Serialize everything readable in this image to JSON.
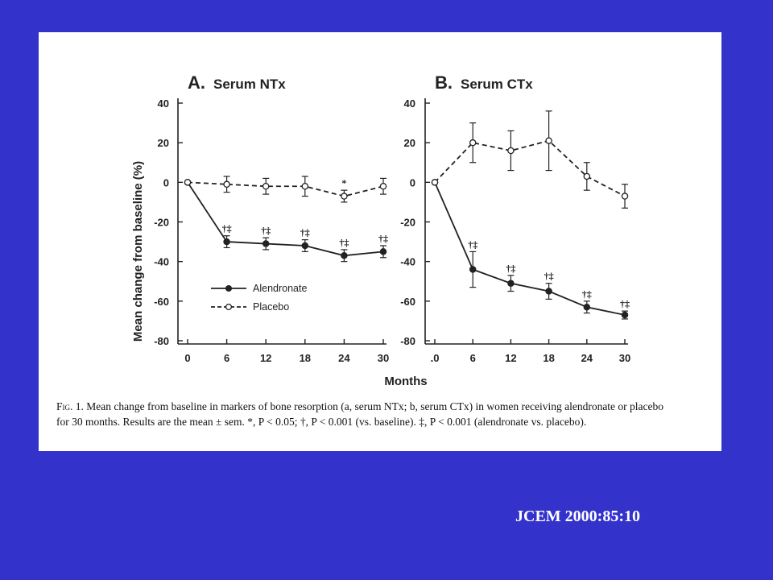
{
  "citation": "JCEM 2000:85:10",
  "caption": {
    "fig_label": "Fig. 1.",
    "line1": "Mean change from baseline in markers of bone resorption (a, serum NTx; b, serum CTx) in women receiving alendronate or placebo",
    "line2": "for 30 months. Results are the mean ± sem. *, P < 0.05; †, P < 0.001 (vs. baseline). ‡, P < 0.001 (alendronate vs. placebo)."
  },
  "colors": {
    "background": "#3333cc",
    "panel": "#ffffff",
    "ink": "#222222"
  },
  "chart_data": [
    {
      "type": "line",
      "panel_letter": "A.",
      "title": "Serum NTx",
      "xlabel": "Months",
      "ylabel": "Mean change from baseline (%)",
      "x": [
        0,
        6,
        12,
        18,
        24,
        30
      ],
      "x_tick_labels": [
        "0",
        "6",
        "12",
        "18",
        "24",
        "30"
      ],
      "y_ticks": [
        40,
        20,
        0,
        -20,
        -40,
        -60,
        -80
      ],
      "ylim": [
        -80,
        40
      ],
      "legend": [
        {
          "name": "Alendronate",
          "marker": "filled-circle",
          "line": "solid"
        },
        {
          "name": "Placebo",
          "marker": "open-circle",
          "line": "dashed"
        }
      ],
      "series": [
        {
          "name": "Alendronate",
          "values": [
            0,
            -30,
            -31,
            -32,
            -37,
            -35
          ],
          "sem": [
            0,
            3,
            3,
            3,
            3,
            3
          ]
        },
        {
          "name": "Placebo",
          "values": [
            0,
            -1,
            -2,
            -2,
            -7,
            -2
          ],
          "sem": [
            0,
            4,
            4,
            5,
            3,
            4
          ]
        }
      ],
      "annotations": [
        {
          "x": 6,
          "text": "†‡",
          "series": "Alendronate"
        },
        {
          "x": 12,
          "text": "†‡",
          "series": "Alendronate"
        },
        {
          "x": 18,
          "text": "†‡",
          "series": "Alendronate"
        },
        {
          "x": 24,
          "text": "†‡",
          "series": "Alendronate"
        },
        {
          "x": 30,
          "text": "†‡",
          "series": "Alendronate"
        },
        {
          "x": 24,
          "text": "*",
          "series": "Placebo"
        }
      ]
    },
    {
      "type": "line",
      "panel_letter": "B.",
      "title": "Serum CTx",
      "x": [
        0,
        6,
        12,
        18,
        24,
        30
      ],
      "x_tick_labels": [
        ".0",
        "6",
        "12",
        "18",
        "24",
        "30"
      ],
      "y_ticks": [
        40,
        20,
        0,
        -20,
        -40,
        -60,
        -80
      ],
      "ylim": [
        -80,
        40
      ],
      "series": [
        {
          "name": "Alendronate",
          "values": [
            0,
            -44,
            -51,
            -55,
            -63,
            -67
          ],
          "sem": [
            0,
            9,
            4,
            4,
            3,
            2
          ]
        },
        {
          "name": "Placebo",
          "values": [
            0,
            20,
            16,
            21,
            3,
            -7
          ],
          "sem": [
            0,
            10,
            10,
            15,
            7,
            6
          ]
        }
      ],
      "annotations": [
        {
          "x": 6,
          "text": "†‡",
          "series": "Alendronate"
        },
        {
          "x": 12,
          "text": "†‡",
          "series": "Alendronate"
        },
        {
          "x": 18,
          "text": "†‡",
          "series": "Alendronate"
        },
        {
          "x": 24,
          "text": "†‡",
          "series": "Alendronate"
        },
        {
          "x": 30,
          "text": "†‡",
          "series": "Alendronate"
        }
      ]
    }
  ]
}
